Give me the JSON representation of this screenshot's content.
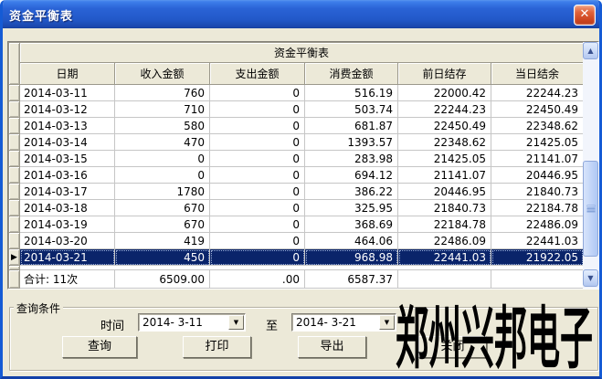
{
  "window": {
    "title": "资金平衡表"
  },
  "icons": {
    "close": "✕",
    "scroll_up": "▲",
    "scroll_down": "▼",
    "dropdown": "▼",
    "row_marker": "▶"
  },
  "colors": {
    "titlebar_blue": "#2A63D6",
    "client_bg": "#ECE9D8",
    "selection_bg": "#0A246A",
    "grid_line": "#C6C6C6",
    "close_red": "#CC4520"
  },
  "table": {
    "caption": "资金平衡表",
    "columns": [
      "日期",
      "收入金额",
      "支出金额",
      "消费金额",
      "前日结存",
      "当日结余"
    ],
    "rows": [
      [
        "2014-03-11",
        "760",
        "0",
        "516.19",
        "22000.42",
        "22244.23"
      ],
      [
        "2014-03-12",
        "710",
        "0",
        "503.74",
        "22244.23",
        "22450.49"
      ],
      [
        "2014-03-13",
        "580",
        "0",
        "681.87",
        "22450.49",
        "22348.62"
      ],
      [
        "2014-03-14",
        "470",
        "0",
        "1393.57",
        "22348.62",
        "21425.05"
      ],
      [
        "2014-03-15",
        "0",
        "0",
        "283.98",
        "21425.05",
        "21141.07"
      ],
      [
        "2014-03-16",
        "0",
        "0",
        "694.12",
        "21141.07",
        "20446.95"
      ],
      [
        "2014-03-17",
        "1780",
        "0",
        "386.22",
        "20446.95",
        "21840.73"
      ],
      [
        "2014-03-18",
        "670",
        "0",
        "325.95",
        "21840.73",
        "22184.78"
      ],
      [
        "2014-03-19",
        "670",
        "0",
        "368.69",
        "22184.78",
        "22486.09"
      ],
      [
        "2014-03-20",
        "419",
        "0",
        "464.06",
        "22486.09",
        "22441.03"
      ],
      [
        "2014-03-21",
        "450",
        "0",
        "968.98",
        "22441.03",
        "21922.05"
      ]
    ],
    "selected_row_index": 10,
    "total_row": {
      "label": "合计: 11次",
      "income": "6509.00",
      "expense": ".00",
      "consume": "6587.37"
    }
  },
  "query": {
    "group_label": "查询条件",
    "time_label": "时间",
    "to_label": "至",
    "date_from": "2014- 3-11",
    "date_to": "2014- 3-21",
    "buttons": {
      "search": "查询",
      "print": "打印",
      "export": "导出",
      "close": "关闭"
    }
  },
  "watermark": "郑州兴邦电子"
}
